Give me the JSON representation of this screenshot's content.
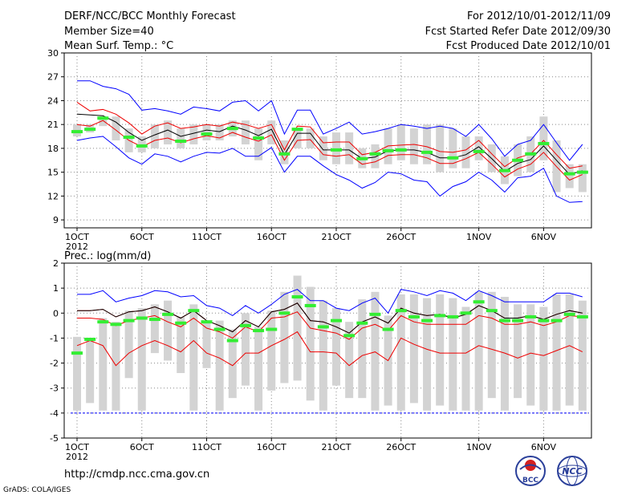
{
  "header": {
    "title": "DERF/NCC/BCC Monthly Forecast",
    "member_size": "Member Size=40",
    "variable": "Mean Surf. Temp.: °C",
    "period": "For 2012/10/01-2012/11/09",
    "started": "Fcst Started Refer Date 2012/09/30",
    "produced": "Fcst Produced Date 2012/10/01"
  },
  "footer": {
    "url": "http://cmdp.ncc.cma.gov.cn",
    "credit": "GrADS: COLA/IGES",
    "logo_left_text": "BCC",
    "logo_right_text": "NCC"
  },
  "colors": {
    "max_min": "#0000ff",
    "spread": "#ee0000",
    "mean": "#000000",
    "observed": "#33ee33",
    "box": "#d3d3d3"
  },
  "chart_data": [
    {
      "type": "box-line",
      "title": "Mean Surf. Temp.: °C",
      "x_ticks": [
        "1OCT",
        "6OCT",
        "11OCT",
        "16OCT",
        "21OCT",
        "26OCT",
        "1NOV",
        "6NOV"
      ],
      "x_tick_days": [
        1,
        6,
        11,
        16,
        21,
        26,
        32,
        37
      ],
      "x_year_label": "2012",
      "ylim": [
        8,
        30
      ],
      "y_ticks": [
        9,
        12,
        15,
        18,
        21,
        24,
        27,
        30
      ],
      "days": [
        1,
        2,
        3,
        4,
        5,
        6,
        7,
        8,
        9,
        10,
        11,
        12,
        13,
        14,
        15,
        16,
        17,
        18,
        19,
        20,
        21,
        22,
        23,
        24,
        25,
        26,
        27,
        28,
        29,
        30,
        31,
        32,
        33,
        34,
        35,
        36,
        37,
        38,
        39,
        40
      ],
      "max": [
        26.5,
        26.5,
        25.8,
        25.5,
        24.8,
        22.8,
        23.0,
        22.7,
        22.3,
        23.2,
        23.0,
        22.7,
        23.8,
        24.0,
        22.7,
        24.0,
        19.8,
        22.8,
        22.8,
        19.8,
        20.5,
        21.3,
        19.8,
        20.1,
        20.5,
        21.0,
        20.8,
        20.5,
        20.8,
        20.5,
        19.5,
        21.0,
        19.2,
        17.0,
        18.5,
        19.0,
        21.0,
        18.7,
        16.5,
        18.5
      ],
      "upper": [
        23.8,
        22.7,
        22.9,
        22.3,
        21.2,
        19.8,
        20.8,
        21.2,
        20.5,
        20.7,
        21.0,
        20.8,
        21.3,
        21.0,
        20.5,
        21.0,
        17.8,
        20.8,
        20.7,
        18.7,
        18.8,
        18.8,
        17.2,
        17.5,
        18.3,
        18.4,
        18.5,
        18.2,
        17.6,
        17.5,
        17.8,
        19.0,
        17.3,
        15.7,
        16.8,
        17.3,
        19.0,
        17.2,
        15.5,
        15.8
      ],
      "mean": [
        22.3,
        22.2,
        22.1,
        21.3,
        20.0,
        19.0,
        19.7,
        20.3,
        19.5,
        19.9,
        20.3,
        20.1,
        20.8,
        20.3,
        19.6,
        20.4,
        17.2,
        19.9,
        19.9,
        17.8,
        17.8,
        17.8,
        16.7,
        16.9,
        17.7,
        17.8,
        17.8,
        17.5,
        16.8,
        16.8,
        17.2,
        18.2,
        16.7,
        15.1,
        16.1,
        16.6,
        18.3,
        16.5,
        14.7,
        15.2
      ],
      "lower": [
        21.0,
        20.8,
        21.5,
        20.3,
        19.0,
        18.2,
        19.0,
        19.3,
        18.7,
        19.2,
        19.6,
        19.3,
        20.0,
        19.4,
        18.9,
        19.7,
        16.5,
        19.0,
        19.1,
        17.2,
        17.0,
        17.2,
        16.0,
        16.3,
        17.1,
        17.2,
        17.2,
        16.8,
        16.1,
        16.1,
        16.7,
        17.5,
        16.0,
        14.4,
        15.4,
        16.0,
        17.5,
        15.7,
        14.0,
        14.7
      ],
      "min": [
        19.0,
        19.3,
        19.5,
        18.2,
        16.8,
        16.0,
        17.3,
        17.0,
        16.3,
        17.0,
        17.5,
        17.4,
        18.0,
        17.0,
        17.0,
        18.1,
        15.0,
        17.0,
        17.0,
        15.8,
        14.7,
        14.0,
        13.0,
        13.7,
        15.0,
        14.8,
        14.0,
        13.8,
        12.0,
        13.2,
        13.8,
        15.0,
        14.0,
        12.5,
        14.3,
        14.5,
        15.5,
        12.0,
        11.2,
        11.3
      ],
      "box_low": [
        19.5,
        20.0,
        20.8,
        19.0,
        17.5,
        17.5,
        18.0,
        18.5,
        18.0,
        18.5,
        19.0,
        19.0,
        19.5,
        18.5,
        16.5,
        18.5,
        16.0,
        18.0,
        18.0,
        16.5,
        16.0,
        16.0,
        15.5,
        15.5,
        16.0,
        16.5,
        16.0,
        16.0,
        15.0,
        15.5,
        15.5,
        16.5,
        15.0,
        13.5,
        14.5,
        15.0,
        16.5,
        12.5,
        13.0,
        12.5
      ],
      "box_high": [
        21.0,
        21.0,
        22.0,
        22.0,
        20.5,
        19.5,
        21.0,
        21.5,
        20.5,
        21.0,
        21.0,
        21.0,
        21.5,
        21.5,
        20.5,
        21.5,
        19.0,
        20.5,
        20.5,
        19.5,
        20.0,
        20.0,
        18.0,
        18.5,
        20.5,
        21.0,
        20.5,
        21.0,
        21.0,
        20.5,
        19.5,
        19.5,
        18.5,
        17.0,
        18.5,
        19.5,
        22.0,
        19.0,
        16.0,
        16.0
      ],
      "observed": [
        20.1,
        20.4,
        21.8,
        null,
        19.4,
        18.3,
        null,
        null,
        18.9,
        null,
        19.8,
        null,
        20.5,
        null,
        19.3,
        null,
        17.3,
        20.4,
        null,
        null,
        17.8,
        null,
        16.7,
        17.3,
        17.7,
        17.8,
        null,
        17.5,
        null,
        16.8,
        null,
        17.6,
        null,
        15.2,
        16.5,
        17.3,
        18.6,
        null,
        14.8,
        15.0
      ]
    },
    {
      "type": "box-line",
      "title": "Prec.: log(mm/d)",
      "x_ticks": [
        "1OCT",
        "6OCT",
        "11OCT",
        "16OCT",
        "21OCT",
        "26OCT",
        "1NOV",
        "6NOV"
      ],
      "x_tick_days": [
        1,
        6,
        11,
        16,
        21,
        26,
        32,
        37
      ],
      "x_year_label": "2012",
      "ylim": [
        -5,
        2
      ],
      "y_ticks": [
        -5,
        -4,
        -3,
        -2,
        -1,
        0,
        1,
        2
      ],
      "days": [
        1,
        2,
        3,
        4,
        5,
        6,
        7,
        8,
        9,
        10,
        11,
        12,
        13,
        14,
        15,
        16,
        17,
        18,
        19,
        20,
        21,
        22,
        23,
        24,
        25,
        26,
        27,
        28,
        29,
        30,
        31,
        32,
        33,
        34,
        35,
        36,
        37,
        38,
        39,
        40
      ],
      "max": [
        0.75,
        0.75,
        0.9,
        0.45,
        0.6,
        0.7,
        0.9,
        0.85,
        0.65,
        0.7,
        0.3,
        0.2,
        -0.1,
        0.3,
        0.0,
        0.35,
        0.75,
        0.95,
        0.5,
        0.5,
        0.2,
        0.1,
        0.4,
        0.6,
        0.0,
        0.95,
        0.85,
        0.7,
        0.9,
        0.8,
        0.5,
        0.9,
        0.7,
        0.45,
        0.45,
        0.45,
        0.45,
        0.8,
        0.8,
        0.65
      ],
      "upper": [
        0.1,
        0.1,
        0.15,
        -0.15,
        0.05,
        0.1,
        0.25,
        0.05,
        -0.2,
        0.1,
        -0.3,
        -0.5,
        -0.75,
        -0.3,
        -0.55,
        0.05,
        0.15,
        0.4,
        -0.3,
        -0.35,
        -0.55,
        -0.8,
        -0.35,
        -0.15,
        -0.4,
        0.2,
        0.0,
        -0.1,
        -0.05,
        -0.2,
        -0.05,
        0.3,
        0.1,
        -0.2,
        -0.2,
        -0.1,
        -0.25,
        -0.05,
        0.1,
        0.0
      ],
      "mean": [
        0.1,
        0.1,
        0.15,
        -0.15,
        0.05,
        0.1,
        0.25,
        0.05,
        -0.2,
        0.1,
        -0.3,
        -0.5,
        -0.75,
        -0.3,
        -0.55,
        0.05,
        0.15,
        0.4,
        -0.3,
        -0.35,
        -0.55,
        -0.8,
        -0.35,
        -0.15,
        -0.4,
        0.2,
        0.0,
        -0.1,
        -0.05,
        -0.2,
        -0.05,
        0.3,
        0.1,
        -0.2,
        -0.2,
        -0.1,
        -0.25,
        -0.05,
        0.1,
        0.0
      ],
      "lower": [
        -0.2,
        -0.2,
        -0.25,
        -0.5,
        -0.3,
        -0.2,
        -0.1,
        -0.35,
        -0.55,
        -0.2,
        -0.6,
        -0.75,
        -1.0,
        -0.55,
        -0.75,
        -0.2,
        -0.15,
        0.05,
        -0.6,
        -0.7,
        -0.8,
        -1.05,
        -0.6,
        -0.45,
        -0.7,
        -0.1,
        -0.35,
        -0.45,
        -0.45,
        -0.45,
        -0.45,
        -0.1,
        -0.2,
        -0.45,
        -0.45,
        -0.35,
        -0.5,
        -0.35,
        -0.1,
        -0.15
      ],
      "min": [
        -1.3,
        -1.1,
        -1.3,
        -2.1,
        -1.6,
        -1.3,
        -1.1,
        -1.3,
        -1.55,
        -1.1,
        -1.6,
        -1.8,
        -2.1,
        -1.6,
        -1.6,
        -1.3,
        -1.05,
        -0.75,
        -1.55,
        -1.55,
        -1.6,
        -2.1,
        -1.7,
        -1.55,
        -1.9,
        -1.0,
        -1.25,
        -1.45,
        -1.6,
        -1.6,
        -1.6,
        -1.3,
        -1.45,
        -1.6,
        -1.8,
        -1.6,
        -1.7,
        -1.5,
        -1.3,
        -1.55
      ],
      "box_low": [
        -3.9,
        -3.6,
        -3.9,
        -3.9,
        -2.6,
        -3.9,
        -1.6,
        -1.9,
        -2.4,
        -3.9,
        -2.2,
        -3.9,
        -3.4,
        -2.9,
        -3.9,
        -3.1,
        -2.8,
        -2.7,
        -3.5,
        -3.9,
        -2.9,
        -3.4,
        -3.4,
        -3.9,
        -3.7,
        -3.9,
        -3.6,
        -3.9,
        -3.7,
        -3.9,
        -3.9,
        -3.9,
        -3.4,
        -3.9,
        -3.4,
        -3.7,
        -3.9,
        -3.9,
        -3.7,
        -3.9
      ],
      "box_high": [
        -0.95,
        -1.0,
        -0.2,
        -0.35,
        0.1,
        0.2,
        0.35,
        0.5,
        -0.15,
        0.35,
        -0.35,
        -0.3,
        -0.65,
        0.0,
        -0.55,
        0.1,
        0.85,
        1.5,
        1.05,
        0.5,
        0.2,
        -0.35,
        0.55,
        0.85,
        -0.1,
        0.75,
        0.75,
        0.6,
        0.75,
        0.6,
        0.25,
        0.85,
        0.85,
        0.65,
        0.35,
        0.35,
        0.25,
        0.75,
        0.75,
        0.5
      ],
      "observed": [
        -1.6,
        -1.05,
        -0.35,
        -0.45,
        -0.3,
        -0.2,
        -0.25,
        -0.05,
        -0.4,
        0.1,
        -0.35,
        -0.65,
        -1.1,
        -0.5,
        -0.7,
        -0.65,
        0.0,
        0.65,
        0.3,
        -0.55,
        -0.3,
        -0.9,
        -0.4,
        -0.05,
        -0.65,
        0.1,
        -0.15,
        -0.3,
        -0.1,
        -0.15,
        0.0,
        0.45,
        0.1,
        -0.3,
        -0.3,
        -0.15,
        -0.3,
        -0.3,
        -0.05,
        -0.15
      ]
    }
  ]
}
